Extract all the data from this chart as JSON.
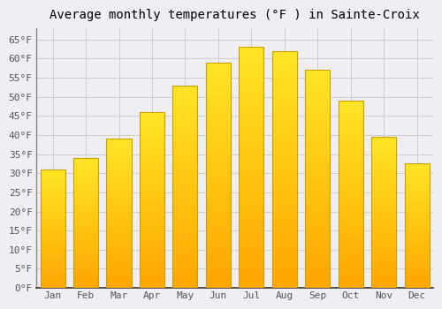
{
  "title": "Average monthly temperatures (°F ) in Sainte-Croix",
  "months": [
    "Jan",
    "Feb",
    "Mar",
    "Apr",
    "May",
    "Jun",
    "Jul",
    "Aug",
    "Sep",
    "Oct",
    "Nov",
    "Dec"
  ],
  "values": [
    31,
    34,
    39,
    46,
    53,
    59,
    63,
    62,
    57,
    49,
    39.5,
    32.5
  ],
  "bar_color_bottom": "#FFA500",
  "bar_color_top": "#FFD700",
  "bar_edge_color": "#C8A000",
  "background_color": "#F0EEF5",
  "plot_bg_color": "#F0EEF5",
  "grid_color": "#CCCCCC",
  "ytick_labels": [
    "0°F",
    "5°F",
    "10°F",
    "15°F",
    "20°F",
    "25°F",
    "30°F",
    "35°F",
    "40°F",
    "45°F",
    "50°F",
    "55°F",
    "60°F",
    "65°F"
  ],
  "ytick_values": [
    0,
    5,
    10,
    15,
    20,
    25,
    30,
    35,
    40,
    45,
    50,
    55,
    60,
    65
  ],
  "ylim": [
    0,
    68
  ],
  "title_fontsize": 10,
  "tick_fontsize": 8,
  "font_family": "monospace",
  "bar_width": 0.75
}
